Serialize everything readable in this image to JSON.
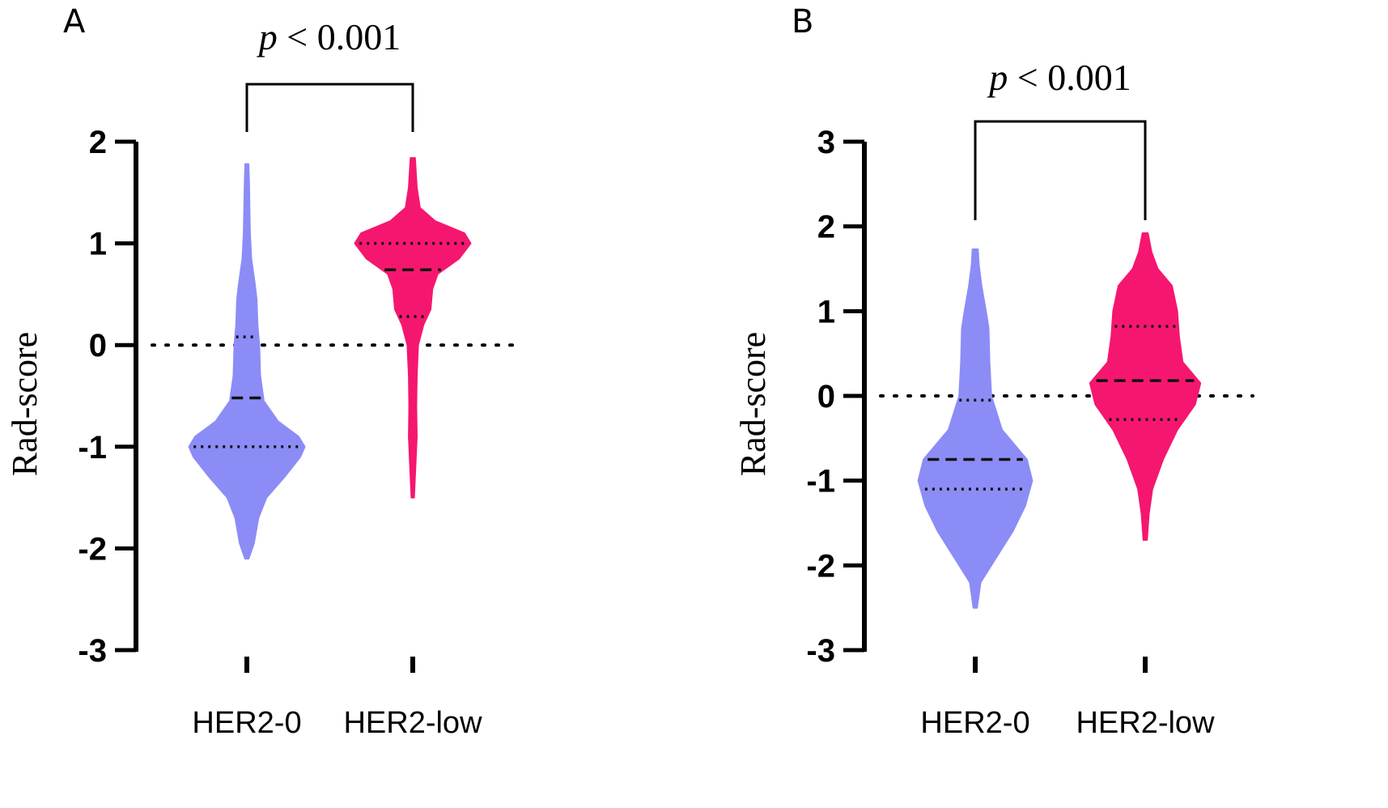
{
  "chart_data": [
    {
      "panel": "A",
      "type": "violin",
      "ylabel": "Rad-score",
      "ylim": [
        -3,
        2
      ],
      "yticks": [
        "2",
        "1",
        "0",
        "-1",
        "-2",
        "-3"
      ],
      "categories": [
        "HER2-0",
        "HER2-low"
      ],
      "significance": {
        "prefix": "p",
        "text": " < 0.001",
        "between": [
          "HER2-0",
          "HER2-low"
        ]
      },
      "reference_line_y": 0,
      "series": [
        {
          "name": "HER2-0",
          "color": "#8c8cf7",
          "median": -0.52,
          "q1": -1.0,
          "q3": 0.08,
          "profile": [
            [
              -2.1,
              0.02
            ],
            [
              -1.95,
              0.08
            ],
            [
              -1.7,
              0.13
            ],
            [
              -1.5,
              0.22
            ],
            [
              -1.3,
              0.42
            ],
            [
              -1.1,
              0.6
            ],
            [
              -1.0,
              0.65
            ],
            [
              -0.9,
              0.58
            ],
            [
              -0.75,
              0.35
            ],
            [
              -0.55,
              0.19
            ],
            [
              -0.3,
              0.15
            ],
            [
              0.0,
              0.14
            ],
            [
              0.2,
              0.12
            ],
            [
              0.45,
              0.11
            ],
            [
              0.6,
              0.09
            ],
            [
              0.85,
              0.05
            ],
            [
              1.1,
              0.035
            ],
            [
              1.35,
              0.03
            ],
            [
              1.6,
              0.025
            ],
            [
              1.78,
              0.018
            ]
          ]
        },
        {
          "name": "HER2-low",
          "color": "#f5176f",
          "median": 0.74,
          "q1": 0.28,
          "q3": 1.0,
          "profile": [
            [
              -1.5,
              0.015
            ],
            [
              -1.2,
              0.03
            ],
            [
              -0.9,
              0.045
            ],
            [
              -0.6,
              0.04
            ],
            [
              -0.3,
              0.045
            ],
            [
              0.0,
              0.06
            ],
            [
              0.2,
              0.12
            ],
            [
              0.35,
              0.2
            ],
            [
              0.55,
              0.22
            ],
            [
              0.7,
              0.28
            ],
            [
              0.85,
              0.52
            ],
            [
              1.0,
              0.65
            ],
            [
              1.1,
              0.58
            ],
            [
              1.22,
              0.25
            ],
            [
              1.35,
              0.08
            ],
            [
              1.55,
              0.045
            ],
            [
              1.84,
              0.025
            ]
          ]
        }
      ]
    },
    {
      "panel": "B",
      "type": "violin",
      "ylabel": "Rad-score",
      "ylim": [
        -3,
        3
      ],
      "yticks": [
        "3",
        "2",
        "1",
        "0",
        "-1",
        "-2",
        "-3"
      ],
      "categories": [
        "HER2-0",
        "HER2-low"
      ],
      "significance": {
        "prefix": "p",
        "text": " < 0.001",
        "between": [
          "HER2-0",
          "HER2-low"
        ]
      },
      "reference_line_y": 0,
      "series": [
        {
          "name": "HER2-0",
          "color": "#8c8cf7",
          "median": -0.75,
          "q1": -1.1,
          "q3": -0.05,
          "profile": [
            [
              -2.5,
              0.02
            ],
            [
              -2.2,
              0.06
            ],
            [
              -1.9,
              0.24
            ],
            [
              -1.6,
              0.42
            ],
            [
              -1.3,
              0.56
            ],
            [
              -1.0,
              0.64
            ],
            [
              -0.75,
              0.58
            ],
            [
              -0.4,
              0.3
            ],
            [
              0.0,
              0.18
            ],
            [
              0.4,
              0.16
            ],
            [
              0.8,
              0.15
            ],
            [
              1.0,
              0.12
            ],
            [
              1.3,
              0.07
            ],
            [
              1.55,
              0.04
            ],
            [
              1.73,
              0.03
            ]
          ]
        },
        {
          "name": "HER2-low",
          "color": "#f5176f",
          "median": 0.18,
          "q1": -0.28,
          "q3": 0.82,
          "profile": [
            [
              -1.7,
              0.02
            ],
            [
              -1.4,
              0.04
            ],
            [
              -1.1,
              0.08
            ],
            [
              -0.75,
              0.2
            ],
            [
              -0.4,
              0.36
            ],
            [
              -0.1,
              0.56
            ],
            [
              0.15,
              0.62
            ],
            [
              0.4,
              0.42
            ],
            [
              0.7,
              0.38
            ],
            [
              1.0,
              0.36
            ],
            [
              1.3,
              0.3
            ],
            [
              1.5,
              0.14
            ],
            [
              1.7,
              0.07
            ],
            [
              1.92,
              0.03
            ]
          ]
        }
      ]
    }
  ]
}
